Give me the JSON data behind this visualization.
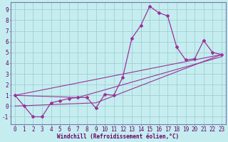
{
  "background_color": "#c5edf0",
  "grid_color": "#a0d0d4",
  "line_color": "#993399",
  "spine_color": "#7777aa",
  "xlabel": "Windchill (Refroidissement éolien,°C)",
  "xlim": [
    -0.5,
    23.5
  ],
  "ylim": [
    -1.7,
    9.7
  ],
  "xticks": [
    0,
    1,
    2,
    3,
    4,
    5,
    6,
    7,
    8,
    9,
    10,
    11,
    12,
    13,
    14,
    15,
    16,
    17,
    18,
    19,
    20,
    21,
    22,
    23
  ],
  "yticks": [
    -1,
    0,
    1,
    2,
    3,
    4,
    5,
    6,
    7,
    8,
    9
  ],
  "main_x": [
    0,
    1,
    2,
    3,
    4,
    5,
    6,
    7,
    8,
    9,
    10,
    11,
    12,
    13,
    14,
    15,
    16,
    17,
    18,
    19,
    20,
    21,
    22,
    23
  ],
  "main_y": [
    1.0,
    0.0,
    -1.0,
    -1.0,
    0.3,
    0.5,
    0.7,
    0.8,
    0.8,
    -0.2,
    1.1,
    1.0,
    2.7,
    6.3,
    7.5,
    9.3,
    8.7,
    8.4,
    5.5,
    4.3,
    4.4,
    6.1,
    5.0,
    4.8
  ],
  "trend1_x": [
    0,
    23
  ],
  "trend1_y": [
    1.0,
    4.8
  ],
  "trend2_x": [
    0,
    9,
    23
  ],
  "trend2_y": [
    0.0,
    0.3,
    4.8
  ],
  "trend3_x": [
    0,
    7,
    23
  ],
  "trend3_y": [
    1.0,
    0.8,
    4.6
  ],
  "xlabel_fontsize": 5.5,
  "tick_fontsize": 5.5,
  "tick_color": "#660066"
}
